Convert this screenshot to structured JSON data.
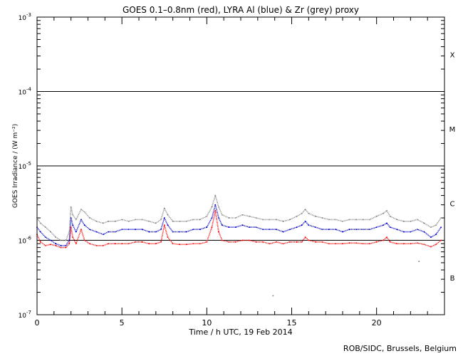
{
  "chart_data": {
    "type": "line",
    "title": "GOES 0.1–0.8nm (red), LYRA Al (blue) & Zr (grey) proxy",
    "xlabel": "Time / h UTC, 19 Feb 2014",
    "ylabel": "GOES Irradiance / (W m⁻²)",
    "credit": "ROB/SIDC, Brussels, Belgium",
    "x_scale": "linear",
    "xlim": [
      0,
      24
    ],
    "x_ticks": [
      0,
      5,
      10,
      15,
      20
    ],
    "y_scale": "log",
    "ylim": [
      1e-07,
      0.001
    ],
    "y_ticks": [
      {
        "value": 1e-07,
        "exponent": "-7"
      },
      {
        "value": 1e-06,
        "exponent": "-6"
      },
      {
        "value": 1e-05,
        "exponent": "-5"
      },
      {
        "value": 0.0001,
        "exponent": "-4"
      },
      {
        "value": 0.001,
        "exponent": "-3"
      }
    ],
    "flare_class_lines": [
      1e-06,
      1e-05,
      0.0001
    ],
    "flare_classes": [
      {
        "label": "X",
        "value": 0.000316
      },
      {
        "label": "M",
        "value": 3.16e-05
      },
      {
        "label": "C",
        "value": 3.16e-06
      },
      {
        "label": "B",
        "value": 3.16e-07
      }
    ],
    "grid": false,
    "legend": "none",
    "series": [
      {
        "color": "#ff0000",
        "points": [
          [
            0.0,
            1.2e-06
          ],
          [
            0.2,
            9.5e-07
          ],
          [
            0.5,
            8.5e-07
          ],
          [
            0.8,
            8.8e-07
          ],
          [
            1.1,
            8.5e-07
          ],
          [
            1.4,
            8e-07
          ],
          [
            1.7,
            8e-07
          ],
          [
            1.9,
            9e-07
          ],
          [
            2.0,
            1.5e-06
          ],
          [
            2.1,
            1.1e-06
          ],
          [
            2.3,
            9e-07
          ],
          [
            2.6,
            1.4e-06
          ],
          [
            2.8,
            1e-06
          ],
          [
            3.1,
            9e-07
          ],
          [
            3.5,
            8.5e-07
          ],
          [
            3.9,
            8.5e-07
          ],
          [
            4.2,
            9e-07
          ],
          [
            4.6,
            9e-07
          ],
          [
            5.0,
            9e-07
          ],
          [
            5.4,
            9e-07
          ],
          [
            5.8,
            9.5e-07
          ],
          [
            6.2,
            9.5e-07
          ],
          [
            6.6,
            9e-07
          ],
          [
            7.0,
            9e-07
          ],
          [
            7.3,
            9.5e-07
          ],
          [
            7.5,
            1.6e-06
          ],
          [
            7.7,
            1.1e-06
          ],
          [
            8.0,
            9e-07
          ],
          [
            8.4,
            8.8e-07
          ],
          [
            8.8,
            8.8e-07
          ],
          [
            9.2,
            9e-07
          ],
          [
            9.6,
            9e-07
          ],
          [
            10.0,
            9.5e-07
          ],
          [
            10.3,
            1.5e-06
          ],
          [
            10.5,
            2.5e-06
          ],
          [
            10.7,
            1.3e-06
          ],
          [
            10.9,
            1e-06
          ],
          [
            11.3,
            9.5e-07
          ],
          [
            11.7,
            9.5e-07
          ],
          [
            12.1,
            1e-06
          ],
          [
            12.5,
            1e-06
          ],
          [
            12.9,
            9.5e-07
          ],
          [
            13.3,
            9.5e-07
          ],
          [
            13.7,
            9e-07
          ],
          [
            14.1,
            9.5e-07
          ],
          [
            14.5,
            9e-07
          ],
          [
            14.9,
            9.5e-07
          ],
          [
            15.3,
            9.5e-07
          ],
          [
            15.6,
            9.5e-07
          ],
          [
            15.8,
            1.1e-06
          ],
          [
            16.0,
            1e-06
          ],
          [
            16.4,
            9.5e-07
          ],
          [
            16.8,
            9.5e-07
          ],
          [
            17.2,
            9e-07
          ],
          [
            17.6,
            9e-07
          ],
          [
            18.0,
            9e-07
          ],
          [
            18.4,
            9.2e-07
          ],
          [
            18.8,
            9.2e-07
          ],
          [
            19.2,
            9e-07
          ],
          [
            19.6,
            9e-07
          ],
          [
            20.0,
            9.5e-07
          ],
          [
            20.4,
            1e-06
          ],
          [
            20.6,
            1.1e-06
          ],
          [
            20.8,
            9.5e-07
          ],
          [
            21.2,
            9e-07
          ],
          [
            21.6,
            9e-07
          ],
          [
            22.0,
            9e-07
          ],
          [
            22.4,
            9.2e-07
          ],
          [
            22.8,
            8.8e-07
          ],
          [
            23.2,
            8.2e-07
          ],
          [
            23.5,
            8.8e-07
          ],
          [
            23.8,
            1e-06
          ]
        ]
      },
      {
        "color": "#0000cc",
        "points": [
          [
            0.0,
            1.5e-06
          ],
          [
            0.2,
            1.3e-06
          ],
          [
            0.5,
            1.1e-06
          ],
          [
            0.8,
            1e-06
          ],
          [
            1.1,
            9e-07
          ],
          [
            1.4,
            8.5e-07
          ],
          [
            1.7,
            8.5e-07
          ],
          [
            1.9,
            1e-06
          ],
          [
            2.0,
            2e-06
          ],
          [
            2.1,
            1.6e-06
          ],
          [
            2.3,
            1.3e-06
          ],
          [
            2.6,
            1.9e-06
          ],
          [
            2.8,
            1.6e-06
          ],
          [
            3.1,
            1.4e-06
          ],
          [
            3.5,
            1.3e-06
          ],
          [
            3.9,
            1.2e-06
          ],
          [
            4.2,
            1.3e-06
          ],
          [
            4.6,
            1.3e-06
          ],
          [
            5.0,
            1.4e-06
          ],
          [
            5.4,
            1.4e-06
          ],
          [
            5.8,
            1.4e-06
          ],
          [
            6.2,
            1.4e-06
          ],
          [
            6.6,
            1.3e-06
          ],
          [
            7.0,
            1.3e-06
          ],
          [
            7.3,
            1.4e-06
          ],
          [
            7.5,
            2e-06
          ],
          [
            7.7,
            1.6e-06
          ],
          [
            8.0,
            1.3e-06
          ],
          [
            8.4,
            1.3e-06
          ],
          [
            8.8,
            1.3e-06
          ],
          [
            9.2,
            1.4e-06
          ],
          [
            9.6,
            1.4e-06
          ],
          [
            10.0,
            1.5e-06
          ],
          [
            10.3,
            2e-06
          ],
          [
            10.5,
            3e-06
          ],
          [
            10.7,
            2e-06
          ],
          [
            10.9,
            1.6e-06
          ],
          [
            11.3,
            1.5e-06
          ],
          [
            11.7,
            1.5e-06
          ],
          [
            12.1,
            1.6e-06
          ],
          [
            12.5,
            1.5e-06
          ],
          [
            12.9,
            1.5e-06
          ],
          [
            13.3,
            1.4e-06
          ],
          [
            13.7,
            1.4e-06
          ],
          [
            14.1,
            1.4e-06
          ],
          [
            14.5,
            1.3e-06
          ],
          [
            14.9,
            1.4e-06
          ],
          [
            15.3,
            1.5e-06
          ],
          [
            15.6,
            1.6e-06
          ],
          [
            15.8,
            1.8e-06
          ],
          [
            16.0,
            1.6e-06
          ],
          [
            16.4,
            1.5e-06
          ],
          [
            16.8,
            1.4e-06
          ],
          [
            17.2,
            1.4e-06
          ],
          [
            17.6,
            1.4e-06
          ],
          [
            18.0,
            1.3e-06
          ],
          [
            18.4,
            1.4e-06
          ],
          [
            18.8,
            1.4e-06
          ],
          [
            19.2,
            1.4e-06
          ],
          [
            19.6,
            1.4e-06
          ],
          [
            20.0,
            1.5e-06
          ],
          [
            20.4,
            1.6e-06
          ],
          [
            20.6,
            1.7e-06
          ],
          [
            20.8,
            1.5e-06
          ],
          [
            21.2,
            1.4e-06
          ],
          [
            21.6,
            1.3e-06
          ],
          [
            22.0,
            1.3e-06
          ],
          [
            22.4,
            1.4e-06
          ],
          [
            22.8,
            1.3e-06
          ],
          [
            23.2,
            1.1e-06
          ],
          [
            23.5,
            1.2e-06
          ],
          [
            23.8,
            1.5e-06
          ]
        ]
      },
      {
        "color": "#888888",
        "points": [
          [
            0.0,
            2e-06
          ],
          [
            0.2,
            1.7e-06
          ],
          [
            0.5,
            1.5e-06
          ],
          [
            0.8,
            1.3e-06
          ],
          [
            1.1,
            1.1e-06
          ],
          [
            1.4,
            1e-06
          ],
          [
            1.7,
            1e-06
          ],
          [
            1.9,
            1.3e-06
          ],
          [
            2.0,
            2.8e-06
          ],
          [
            2.1,
            2.2e-06
          ],
          [
            2.3,
            1.9e-06
          ],
          [
            2.6,
            2.6e-06
          ],
          [
            2.8,
            2.4e-06
          ],
          [
            3.1,
            2e-06
          ],
          [
            3.5,
            1.8e-06
          ],
          [
            3.9,
            1.7e-06
          ],
          [
            4.2,
            1.8e-06
          ],
          [
            4.6,
            1.8e-06
          ],
          [
            5.0,
            1.9e-06
          ],
          [
            5.4,
            1.8e-06
          ],
          [
            5.8,
            1.9e-06
          ],
          [
            6.2,
            1.9e-06
          ],
          [
            6.6,
            1.8e-06
          ],
          [
            7.0,
            1.7e-06
          ],
          [
            7.3,
            1.9e-06
          ],
          [
            7.5,
            2.7e-06
          ],
          [
            7.7,
            2.2e-06
          ],
          [
            8.0,
            1.8e-06
          ],
          [
            8.4,
            1.8e-06
          ],
          [
            8.8,
            1.8e-06
          ],
          [
            9.2,
            1.9e-06
          ],
          [
            9.6,
            1.9e-06
          ],
          [
            10.0,
            2.1e-06
          ],
          [
            10.3,
            2.8e-06
          ],
          [
            10.5,
            4e-06
          ],
          [
            10.7,
            2.8e-06
          ],
          [
            10.9,
            2.2e-06
          ],
          [
            11.3,
            2e-06
          ],
          [
            11.7,
            2e-06
          ],
          [
            12.1,
            2.2e-06
          ],
          [
            12.5,
            2.1e-06
          ],
          [
            12.9,
            2e-06
          ],
          [
            13.3,
            1.9e-06
          ],
          [
            13.7,
            1.9e-06
          ],
          [
            14.1,
            1.9e-06
          ],
          [
            14.5,
            1.8e-06
          ],
          [
            14.9,
            1.9e-06
          ],
          [
            15.3,
            2.1e-06
          ],
          [
            15.6,
            2.3e-06
          ],
          [
            15.8,
            2.6e-06
          ],
          [
            16.0,
            2.3e-06
          ],
          [
            16.4,
            2.1e-06
          ],
          [
            16.8,
            2e-06
          ],
          [
            17.2,
            1.9e-06
          ],
          [
            17.6,
            1.9e-06
          ],
          [
            18.0,
            1.8e-06
          ],
          [
            18.4,
            1.9e-06
          ],
          [
            18.8,
            1.9e-06
          ],
          [
            19.2,
            1.9e-06
          ],
          [
            19.6,
            1.9e-06
          ],
          [
            20.0,
            2.1e-06
          ],
          [
            20.4,
            2.3e-06
          ],
          [
            20.6,
            2.5e-06
          ],
          [
            20.8,
            2.1e-06
          ],
          [
            21.2,
            1.9e-06
          ],
          [
            21.6,
            1.8e-06
          ],
          [
            22.0,
            1.8e-06
          ],
          [
            22.4,
            1.9e-06
          ],
          [
            22.8,
            1.7e-06
          ],
          [
            23.2,
            1.5e-06
          ],
          [
            23.5,
            1.6e-06
          ],
          [
            23.8,
            2e-06
          ]
        ]
      }
    ],
    "outliers": [
      {
        "x": 22.5,
        "y": 5.2e-07,
        "color": "#888888"
      },
      {
        "x": 13.9,
        "y": 1.8e-07,
        "color": "#888888"
      }
    ]
  }
}
